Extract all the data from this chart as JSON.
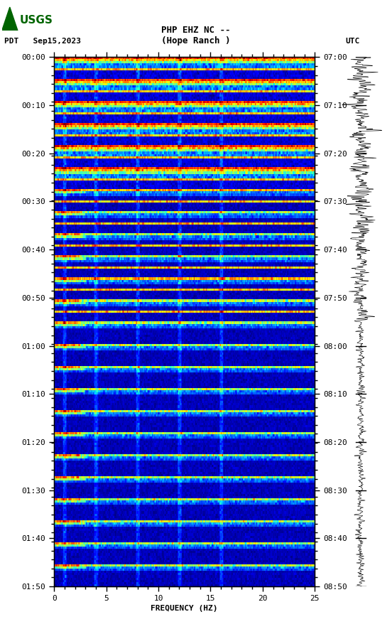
{
  "title_line1": "PHP EHZ NC --",
  "title_line2": "(Hope Ranch )",
  "left_label": "PDT   Sep15,2023",
  "right_label": "UTC",
  "xlabel": "FREQUENCY (HZ)",
  "freq_min": 0,
  "freq_max": 25,
  "freq_ticks": [
    0,
    5,
    10,
    15,
    20,
    25
  ],
  "left_time_labels": [
    "00:00",
    "00:10",
    "00:20",
    "00:30",
    "00:40",
    "00:50",
    "01:00",
    "01:10",
    "01:20",
    "01:30",
    "01:40",
    "01:50"
  ],
  "right_time_labels": [
    "07:00",
    "07:10",
    "07:20",
    "07:30",
    "07:40",
    "07:50",
    "08:00",
    "08:10",
    "08:20",
    "08:30",
    "08:40",
    "08:50"
  ],
  "n_time_rows": 240,
  "n_freq_cols": 500,
  "background_color": "#ffffff",
  "colormap": "jet",
  "fig_width": 5.52,
  "fig_height": 8.92,
  "dpi": 100,
  "logo_color": "#006400"
}
